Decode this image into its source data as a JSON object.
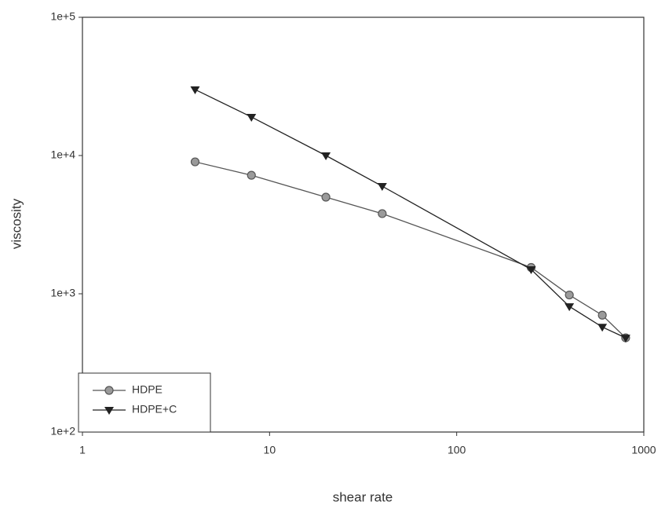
{
  "chart_data": {
    "type": "line",
    "x_label": "shear rate",
    "y_label": "viscosity",
    "log_x": true,
    "log_y": true,
    "xlim": [
      1,
      1000
    ],
    "xticks": [
      1,
      10,
      100,
      1000
    ],
    "ylim": [
      100,
      100000
    ],
    "yticks": [
      {
        "value": 100,
        "label": "1e+2"
      },
      {
        "value": 1000,
        "label": "1e+3"
      },
      {
        "value": 10000,
        "label": "1e+4"
      },
      {
        "value": 100000,
        "label": "1e+5"
      }
    ],
    "legend": "lower left",
    "series": [
      {
        "name": "HDPE",
        "color": "#555555",
        "marker": "circle",
        "x": [
          4,
          8,
          20,
          40,
          250,
          400,
          600,
          800
        ],
        "values": [
          9000,
          7200,
          5000,
          3800,
          1550,
          980,
          700,
          480
        ]
      },
      {
        "name": "HDPE+C",
        "color": "#222222",
        "marker": "triangle-down",
        "x": [
          4,
          8,
          20,
          40,
          250,
          400,
          600,
          800
        ],
        "values": [
          30000,
          19000,
          10000,
          6000,
          1500,
          810,
          575,
          480
        ]
      }
    ]
  }
}
